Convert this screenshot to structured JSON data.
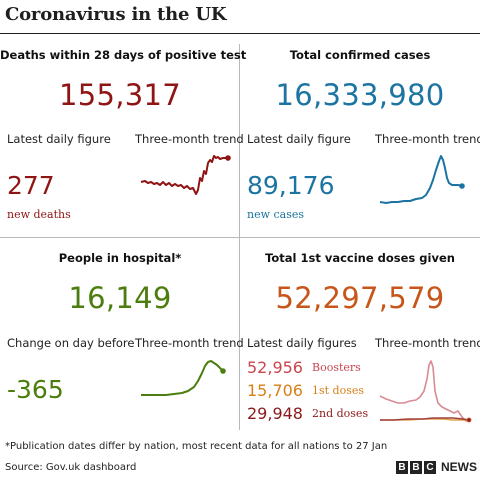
{
  "title": "Coronavirus in the UK",
  "colors": {
    "deaths": "#8f1414",
    "cases": "#1b74a1",
    "hospital": "#4c7d0f",
    "vaccines": "#c8561a",
    "boosters": "#c9464f",
    "first_doses": "#d77f18",
    "second_doses": "#8a1a1a"
  },
  "deaths": {
    "heading": "Deaths within 28 days of positive test",
    "total": "155,317",
    "daily_label": "Latest daily figure",
    "trend_label": "Three-month trend",
    "daily_value": "277",
    "daily_caption": "new deaths"
  },
  "cases": {
    "heading": "Total confirmed cases",
    "total": "16,333,980",
    "daily_label": "Latest daily figure",
    "trend_label": "Three-month trend",
    "daily_value": "89,176",
    "daily_caption": "new cases"
  },
  "hospital": {
    "heading": "People in hospital*",
    "total": "16,149",
    "daily_label": "Change on day before",
    "trend_label": "Three-month trend",
    "daily_value": "-365"
  },
  "vaccines": {
    "heading": "Total 1st vaccine doses given",
    "total": "52,297,579",
    "daily_label": "Latest daily figures",
    "trend_label": "Three-month trend",
    "items": [
      {
        "value": "52,956",
        "label": "Boosters"
      },
      {
        "value": "15,706",
        "label": "1st doses"
      },
      {
        "value": "29,948",
        "label": "2nd doses"
      }
    ]
  },
  "footnote": "*Publication dates differ by nation, most recent data for all nations to 27 Jan",
  "source": "Source: Gov.uk dashboard",
  "logo": {
    "letters": [
      "B",
      "B",
      "C"
    ],
    "news": "NEWS"
  }
}
